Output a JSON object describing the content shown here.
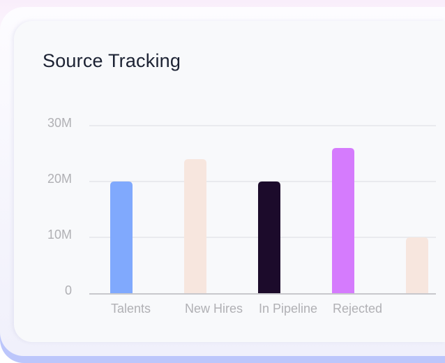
{
  "card": {
    "title": "Source Tracking"
  },
  "chart_data": {
    "type": "bar",
    "title": "Source Tracking",
    "categories": [
      "Talents",
      "New Hires",
      "In Pipeline",
      "Rejected",
      ""
    ],
    "values": [
      20,
      24,
      20,
      26,
      10
    ],
    "value_unit": "M",
    "colors": [
      "#80a9fd",
      "#f7e6de",
      "#1c0b2b",
      "#d57bfd",
      "#f7e6de"
    ],
    "yticks": [
      "0",
      "10M",
      "20M",
      "30M"
    ],
    "ylim": [
      0,
      30
    ],
    "grid": true,
    "xlabel": "",
    "ylabel": ""
  }
}
